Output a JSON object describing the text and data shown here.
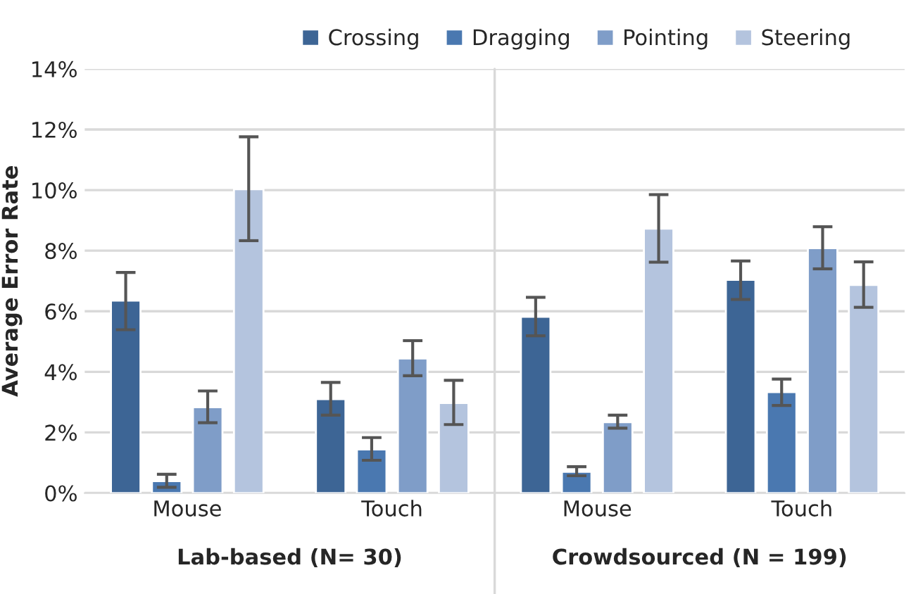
{
  "chart_data": {
    "type": "bar",
    "ylabel": "Average Error Rate",
    "categories": [
      "Mouse",
      "Touch",
      "Mouse",
      "Touch"
    ],
    "series": [
      {
        "name": "Crossing",
        "color": "#3d6595",
        "values": [
          6.35,
          3.1,
          5.82,
          7.04
        ],
        "errors": [
          [
            5.39,
            7.28
          ],
          [
            2.57,
            3.65
          ],
          [
            5.19,
            6.46
          ],
          [
            6.39,
            7.66
          ]
        ]
      },
      {
        "name": "Dragging",
        "color": "#4a78b0",
        "values": [
          0.39,
          1.44,
          0.7,
          3.33
        ],
        "errors": [
          [
            0.19,
            0.62
          ],
          [
            1.08,
            1.83
          ],
          [
            0.57,
            0.87
          ],
          [
            2.89,
            3.76
          ]
        ]
      },
      {
        "name": "Pointing",
        "color": "#7f9dc8",
        "values": [
          2.83,
          4.44,
          2.34,
          8.08
        ],
        "errors": [
          [
            2.32,
            3.37
          ],
          [
            3.87,
            5.03
          ],
          [
            2.14,
            2.57
          ],
          [
            7.4,
            8.79
          ]
        ]
      },
      {
        "name": "Steering",
        "color": "#b4c4de",
        "values": [
          10.03,
          2.97,
          8.73,
          6.87
        ],
        "errors": [
          [
            8.33,
            11.76
          ],
          [
            2.26,
            3.72
          ],
          [
            7.62,
            9.85
          ],
          [
            6.13,
            7.63
          ]
        ]
      }
    ],
    "annotations": [
      "Lab-based (N= 30)",
      "Crowdsourced (N = 199)"
    ],
    "ylim": [
      0,
      14
    ],
    "yticks": [
      {
        "value": 0,
        "label": "0%"
      },
      {
        "value": 2,
        "label": "2%"
      },
      {
        "value": 4,
        "label": "4%"
      },
      {
        "value": 6,
        "label": "6%"
      },
      {
        "value": 8,
        "label": "8%"
      },
      {
        "value": 10,
        "label": "10%"
      },
      {
        "value": 12,
        "label": "12%"
      },
      {
        "value": 14,
        "label": "14%"
      }
    ],
    "grid": "y",
    "legend": "top"
  }
}
